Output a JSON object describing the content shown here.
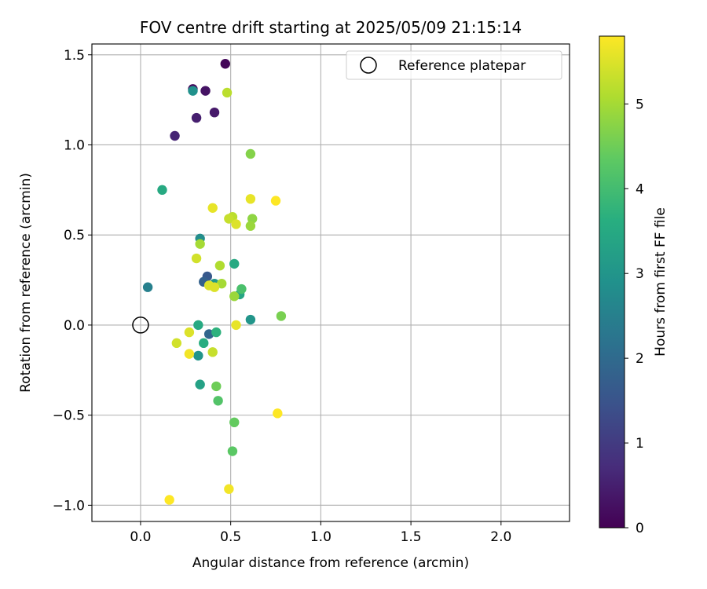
{
  "chart_data": {
    "type": "scatter",
    "title": "FOV centre drift starting at 2025/05/09 21:15:14",
    "xlabel": "Angular distance from reference (arcmin)",
    "ylabel": "Rotation from reference (arcmin)",
    "xlim": [
      -0.27,
      2.38
    ],
    "ylim": [
      -1.09,
      1.56
    ],
    "xticks": [
      0.0,
      0.5,
      1.0,
      1.5,
      2.0
    ],
    "xtick_labels": [
      "0.0",
      "0.5",
      "1.0",
      "1.5",
      "2.0"
    ],
    "yticks": [
      -1.0,
      -0.5,
      0.0,
      0.5,
      1.0,
      1.5
    ],
    "ytick_labels": [
      "−1.0",
      "−0.5",
      "0.0",
      "0.5",
      "1.0",
      "1.5"
    ],
    "grid": true,
    "legend": {
      "placement": "top-right",
      "entries": [
        "Reference platepar"
      ]
    },
    "reference_point": {
      "x": 0.0,
      "y": 0.0,
      "marker": "open-circle"
    },
    "colorbar": {
      "label": "Hours from first FF file",
      "colormap": "viridis",
      "min": 0,
      "max": 5.8,
      "ticks": [
        0,
        1,
        2,
        3,
        4,
        5
      ],
      "tick_labels": [
        "0",
        "1",
        "2",
        "3",
        "4",
        "5"
      ]
    },
    "points": [
      {
        "x": 0.47,
        "y": 1.45,
        "t": 0.1
      },
      {
        "x": 0.29,
        "y": 1.31,
        "t": 0.2
      },
      {
        "x": 0.36,
        "y": 1.3,
        "t": 0.3
      },
      {
        "x": 0.41,
        "y": 1.18,
        "t": 0.4
      },
      {
        "x": 0.31,
        "y": 1.15,
        "t": 0.5
      },
      {
        "x": 0.19,
        "y": 1.05,
        "t": 0.6
      },
      {
        "x": 0.37,
        "y": 0.27,
        "t": 1.6
      },
      {
        "x": 0.35,
        "y": 0.24,
        "t": 1.8
      },
      {
        "x": 0.38,
        "y": -0.05,
        "t": 1.9
      },
      {
        "x": 0.04,
        "y": 0.21,
        "t": 2.5
      },
      {
        "x": 0.33,
        "y": 0.48,
        "t": 2.8
      },
      {
        "x": 0.29,
        "y": 1.3,
        "t": 2.9
      },
      {
        "x": 0.61,
        "y": 0.03,
        "t": 3.0
      },
      {
        "x": 0.32,
        "y": -0.17,
        "t": 3.0
      },
      {
        "x": 0.41,
        "y": 0.23,
        "t": 3.1
      },
      {
        "x": 0.33,
        "y": -0.33,
        "t": 3.3
      },
      {
        "x": 0.55,
        "y": 0.17,
        "t": 3.4
      },
      {
        "x": 0.52,
        "y": 0.34,
        "t": 3.5
      },
      {
        "x": 0.12,
        "y": 0.75,
        "t": 3.5
      },
      {
        "x": 0.32,
        "y": 0.0,
        "t": 3.5
      },
      {
        "x": 0.35,
        "y": -0.1,
        "t": 3.6
      },
      {
        "x": 0.42,
        "y": -0.04,
        "t": 3.7
      },
      {
        "x": 0.56,
        "y": 0.2,
        "t": 4.1
      },
      {
        "x": 0.43,
        "y": -0.42,
        "t": 4.2
      },
      {
        "x": 0.51,
        "y": -0.7,
        "t": 4.3
      },
      {
        "x": 0.52,
        "y": -0.54,
        "t": 4.4
      },
      {
        "x": 0.42,
        "y": -0.34,
        "t": 4.5
      },
      {
        "x": 0.78,
        "y": 0.05,
        "t": 4.6
      },
      {
        "x": 0.61,
        "y": 0.95,
        "t": 4.7
      },
      {
        "x": 0.62,
        "y": 0.59,
        "t": 4.8
      },
      {
        "x": 0.61,
        "y": 0.55,
        "t": 4.9
      },
      {
        "x": 0.52,
        "y": 0.16,
        "t": 4.9
      },
      {
        "x": 0.33,
        "y": 0.45,
        "t": 5.0
      },
      {
        "x": 0.45,
        "y": 0.23,
        "t": 5.0
      },
      {
        "x": 0.44,
        "y": 0.33,
        "t": 5.1
      },
      {
        "x": 0.51,
        "y": 0.6,
        "t": 5.2
      },
      {
        "x": 0.48,
        "y": 1.29,
        "t": 5.2
      },
      {
        "x": 0.49,
        "y": 0.59,
        "t": 5.3
      },
      {
        "x": 0.31,
        "y": 0.37,
        "t": 5.4
      },
      {
        "x": 0.4,
        "y": -0.15,
        "t": 5.3
      },
      {
        "x": 0.53,
        "y": 0.56,
        "t": 5.5
      },
      {
        "x": 0.38,
        "y": 0.22,
        "t": 5.5
      },
      {
        "x": 0.41,
        "y": 0.21,
        "t": 5.5
      },
      {
        "x": 0.2,
        "y": -0.1,
        "t": 5.4
      },
      {
        "x": 0.27,
        "y": -0.04,
        "t": 5.5
      },
      {
        "x": 0.53,
        "y": 0.0,
        "t": 5.6
      },
      {
        "x": 0.61,
        "y": 0.7,
        "t": 5.6
      },
      {
        "x": 0.4,
        "y": 0.65,
        "t": 5.6
      },
      {
        "x": 0.27,
        "y": -0.16,
        "t": 5.7
      },
      {
        "x": 0.49,
        "y": -0.91,
        "t": 5.7
      },
      {
        "x": 0.16,
        "y": -0.97,
        "t": 5.8
      },
      {
        "x": 0.76,
        "y": -0.49,
        "t": 5.8
      },
      {
        "x": 0.75,
        "y": 0.69,
        "t": 5.8
      }
    ]
  }
}
